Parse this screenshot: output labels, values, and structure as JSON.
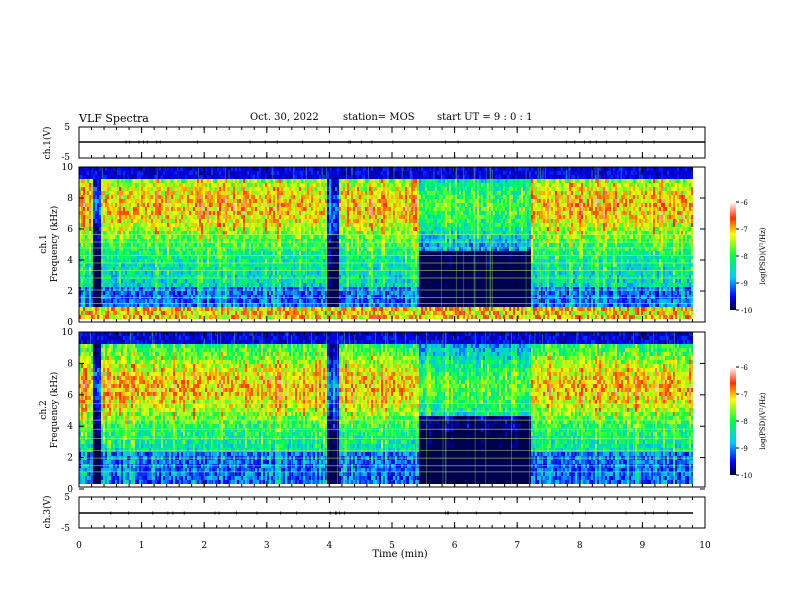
{
  "header": {
    "title": "VLF Spectra",
    "date": "Oct. 30, 2022",
    "station": "station= MOS",
    "start_ut": "start  UT =   9 : 0  : 1"
  },
  "chart_data": [
    {
      "type": "line",
      "panel": "ch1-waveform",
      "ylabel": "ch.1(V)",
      "ylim": [
        -5,
        5
      ],
      "yticks": [
        "5",
        "-5"
      ],
      "xlim": [
        0,
        10
      ],
      "series": [
        {
          "values_description": "",
          "level": 0
        }
      ]
    },
    {
      "type": "heatmap",
      "panel": "ch1-spectrogram",
      "ylabel": "ch.1",
      "ylabel2": "Frequency (kHz)",
      "ylim": [
        0,
        10
      ],
      "yticks": [
        "0",
        "2",
        "4",
        "6",
        "8",
        "10"
      ],
      "xlim": [
        0,
        10
      ],
      "colorbar": {
        "label": "log(PSD)(V²/Hz)",
        "ticks": [
          "-6",
          "-7",
          "-8",
          "-9",
          "-10"
        ],
        "range": [
          -10,
          -6
        ]
      },
      "quiet_intervals_min": [
        [
          0.2,
          0.32
        ],
        [
          3.95,
          4.15
        ],
        [
          5.4,
          7.2
        ]
      ]
    },
    {
      "type": "heatmap",
      "panel": "ch2-spectrogram",
      "ylabel": "ch.2",
      "ylabel2": "Frequency (kHz)",
      "ylim": [
        0,
        10
      ],
      "yticks": [
        "0",
        "2",
        "4",
        "6",
        "8",
        "10"
      ],
      "xlim": [
        0,
        10
      ],
      "colorbar": {
        "label": "log(PSD)(V²/Hz)",
        "ticks": [
          "-6",
          "-7",
          "-8",
          "-9",
          "-10"
        ],
        "range": [
          -10,
          -6
        ]
      },
      "quiet_intervals_min": [
        [
          0.2,
          0.32
        ],
        [
          3.95,
          4.15
        ],
        [
          5.4,
          7.2
        ]
      ]
    },
    {
      "type": "line",
      "panel": "ch3-waveform",
      "ylabel": "ch.3(V)",
      "ylim": [
        -5,
        5
      ],
      "yticks": [
        "5",
        "-5"
      ],
      "xlim": [
        0,
        10
      ],
      "xlabel": "Time  (min)",
      "xticks": [
        "0",
        "1",
        "2",
        "3",
        "4",
        "5",
        "6",
        "7",
        "8",
        "9",
        "10"
      ],
      "series": [
        {
          "level": 0
        }
      ]
    }
  ]
}
